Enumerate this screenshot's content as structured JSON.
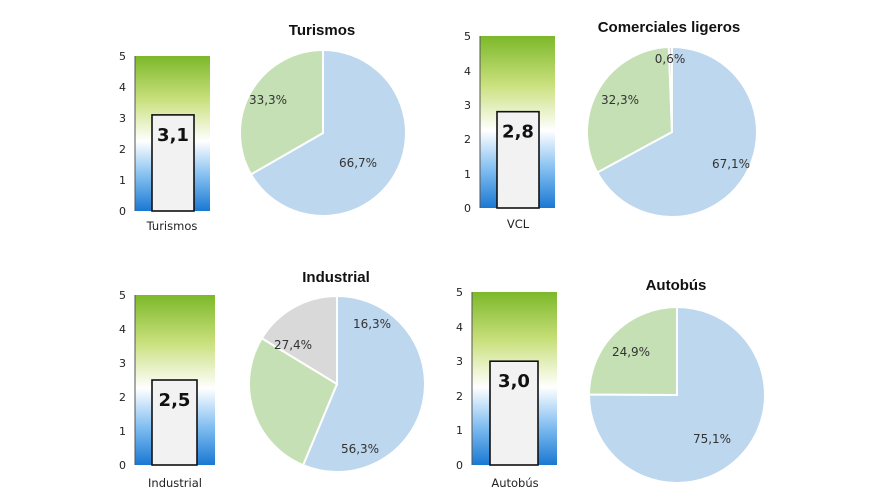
{
  "chart_data": [
    {
      "type": "gauge-bar+pie",
      "bar": {
        "category": "Turismos",
        "value": 3.1,
        "value_label": "3,1",
        "ylim": [
          0,
          5
        ],
        "ticks": [
          "0",
          "1",
          "2",
          "3",
          "4",
          "5"
        ]
      },
      "pie": {
        "title": "Turismos",
        "slices": [
          {
            "value": 66.7,
            "label": "66,7%",
            "color": "#bdd7ee"
          },
          {
            "value": 33.3,
            "label": "33,3%",
            "color": "#c5e0b4"
          }
        ]
      }
    },
    {
      "type": "gauge-bar+pie",
      "bar": {
        "category": "VCL",
        "value": 2.8,
        "value_label": "2,8",
        "ylim": [
          0,
          5
        ],
        "ticks": [
          "0",
          "1",
          "2",
          "3",
          "4",
          "5"
        ]
      },
      "pie": {
        "title": "Comerciales ligeros",
        "slices": [
          {
            "value": 67.1,
            "label": "67,1%",
            "color": "#bdd7ee"
          },
          {
            "value": 32.3,
            "label": "32,3%",
            "color": "#c5e0b4"
          },
          {
            "value": 0.6,
            "label": "0,6%",
            "color": "#d9d9d9"
          }
        ]
      }
    },
    {
      "type": "gauge-bar+pie",
      "bar": {
        "category": "Industrial",
        "value": 2.5,
        "value_label": "2,5",
        "ylim": [
          0,
          5
        ],
        "ticks": [
          "0",
          "1",
          "2",
          "3",
          "4",
          "5"
        ]
      },
      "pie": {
        "title": "Industrial",
        "slices": [
          {
            "value": 56.3,
            "label": "56,3%",
            "color": "#bdd7ee"
          },
          {
            "value": 27.4,
            "label": "27,4%",
            "color": "#c5e0b4"
          },
          {
            "value": 16.3,
            "label": "16,3%",
            "color": "#d9d9d9"
          }
        ]
      }
    },
    {
      "type": "gauge-bar+pie",
      "bar": {
        "category": "Autobús",
        "value": 3.0,
        "value_label": "3,0",
        "ylim": [
          0,
          5
        ],
        "ticks": [
          "0",
          "1",
          "2",
          "3",
          "4",
          "5"
        ]
      },
      "pie": {
        "title": "Autobús",
        "slices": [
          {
            "value": 75.1,
            "label": "75,1%",
            "color": "#bdd7ee"
          },
          {
            "value": 24.9,
            "label": "24,9%",
            "color": "#c5e0b4"
          }
        ]
      }
    }
  ]
}
